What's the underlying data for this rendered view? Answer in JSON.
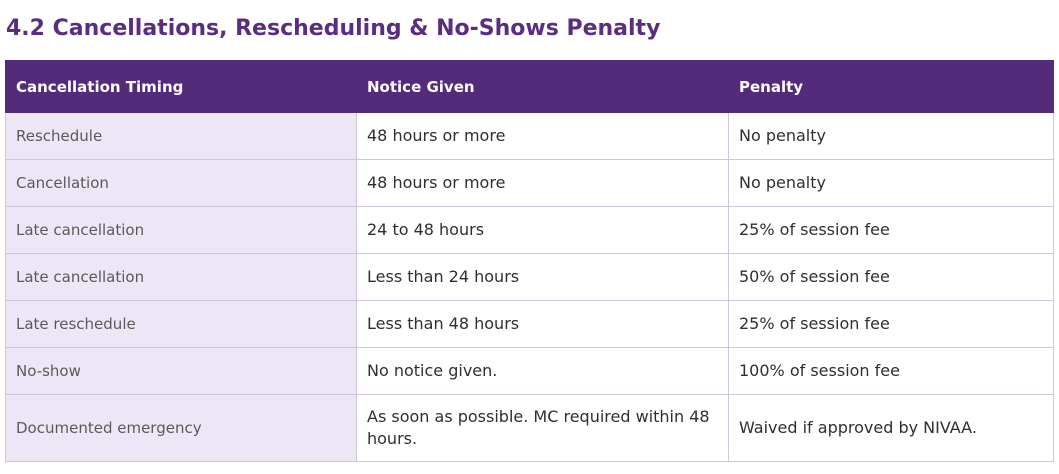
{
  "section": {
    "title": "4.2  Cancellations, Rescheduling & No-Shows Penalty"
  },
  "table": {
    "headers": [
      "Cancellation Timing",
      "Notice Given",
      "Penalty"
    ],
    "rows": [
      {
        "timing": "Reschedule",
        "notice": "48 hours or more",
        "penalty": "No penalty"
      },
      {
        "timing": "Cancellation",
        "notice": "48 hours or more",
        "penalty": "No penalty"
      },
      {
        "timing": "Late cancellation",
        "notice": "24 to 48 hours",
        "penalty": "25% of session fee"
      },
      {
        "timing": "Late cancellation",
        "notice": "Less than 24 hours",
        "penalty": "50% of session fee"
      },
      {
        "timing": "Late reschedule",
        "notice": "Less than 48 hours",
        "penalty": "25% of session fee"
      },
      {
        "timing": "No-show",
        "notice": "No notice given.",
        "penalty": "100% of session fee"
      },
      {
        "timing": "Documented emergency",
        "notice": "As soon as possible. MC required within 48 hours.",
        "penalty": "Waived if approved by NIVAA."
      }
    ]
  },
  "colors": {
    "heading": "#5b2d82",
    "header_bg": "#532b7a",
    "first_column_bg": "#ede6f6",
    "border": "#cfc6d9"
  }
}
